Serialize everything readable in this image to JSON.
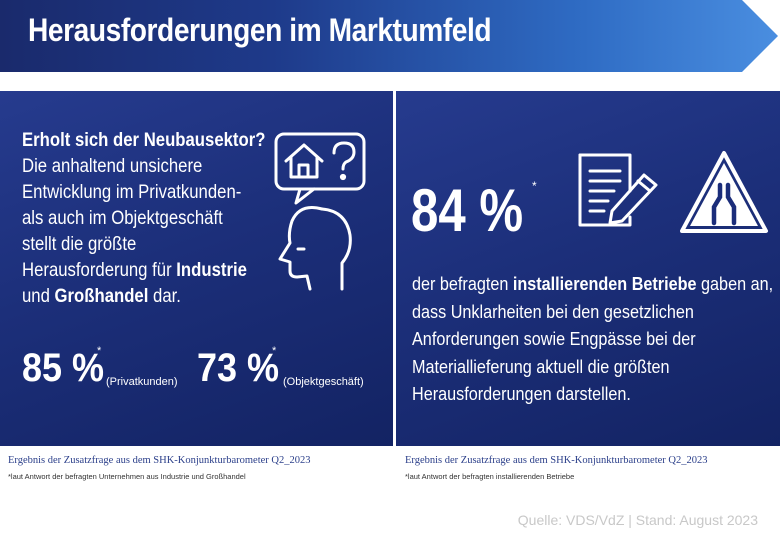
{
  "banner": {
    "title": "Herausforderungen im Marktumfeld"
  },
  "left": {
    "question": "Erholt sich der Neubausektor?",
    "lines": [
      "Die anhaltend unsichere",
      "Entwicklung im Privatkunden-",
      "als auch im Objektgeschäft",
      "stellt die größte",
      "Herausforderung für ",
      "und ",
      " dar."
    ],
    "bold_industrie": "Industrie",
    "bold_grosshandel": "Großhandel",
    "stat1": {
      "value": "85 %",
      "star": "*",
      "label": "(Privatkunden)"
    },
    "stat2": {
      "value": "73 %",
      "star": "*",
      "label": "(Objektgeschäft)"
    },
    "icon": "head-with-house-question-icon",
    "footnote_title": "Ergebnis der Zusatzfrage aus dem SHK-Konjunkturbarometer Q2_2023",
    "footnote_note": "*laut Antwort der befragten Unternehmen aus Industrie und Großhandel"
  },
  "right": {
    "stat": {
      "value": "84 %",
      "star": "*"
    },
    "icons": [
      "document-pencil-icon",
      "road-narrows-warning-icon"
    ],
    "line1_pre": "der befragten ",
    "line1_bold": "installierenden Betriebe",
    "line1_post": " gaben an,",
    "lines": [
      "dass Unklarheiten bei den gesetzlichen",
      "Anforderungen sowie  Engpässe bei der",
      "Materiallieferung aktuell die größten",
      "Herausforderungen darstellen."
    ],
    "footnote_title": "Ergebnis der Zusatzfrage aus dem SHK-Konjunkturbarometer Q2_2023",
    "footnote_note": "*laut Antwort der befragten installierenden Betriebe"
  },
  "source": "Quelle: VDS/VdZ | Stand: August 2023",
  "colors": {
    "banner_dark": "#1a2a6c",
    "banner_light": "#3f7fd6",
    "panel": "#1e3180",
    "footnote": "#2b3f8a"
  }
}
